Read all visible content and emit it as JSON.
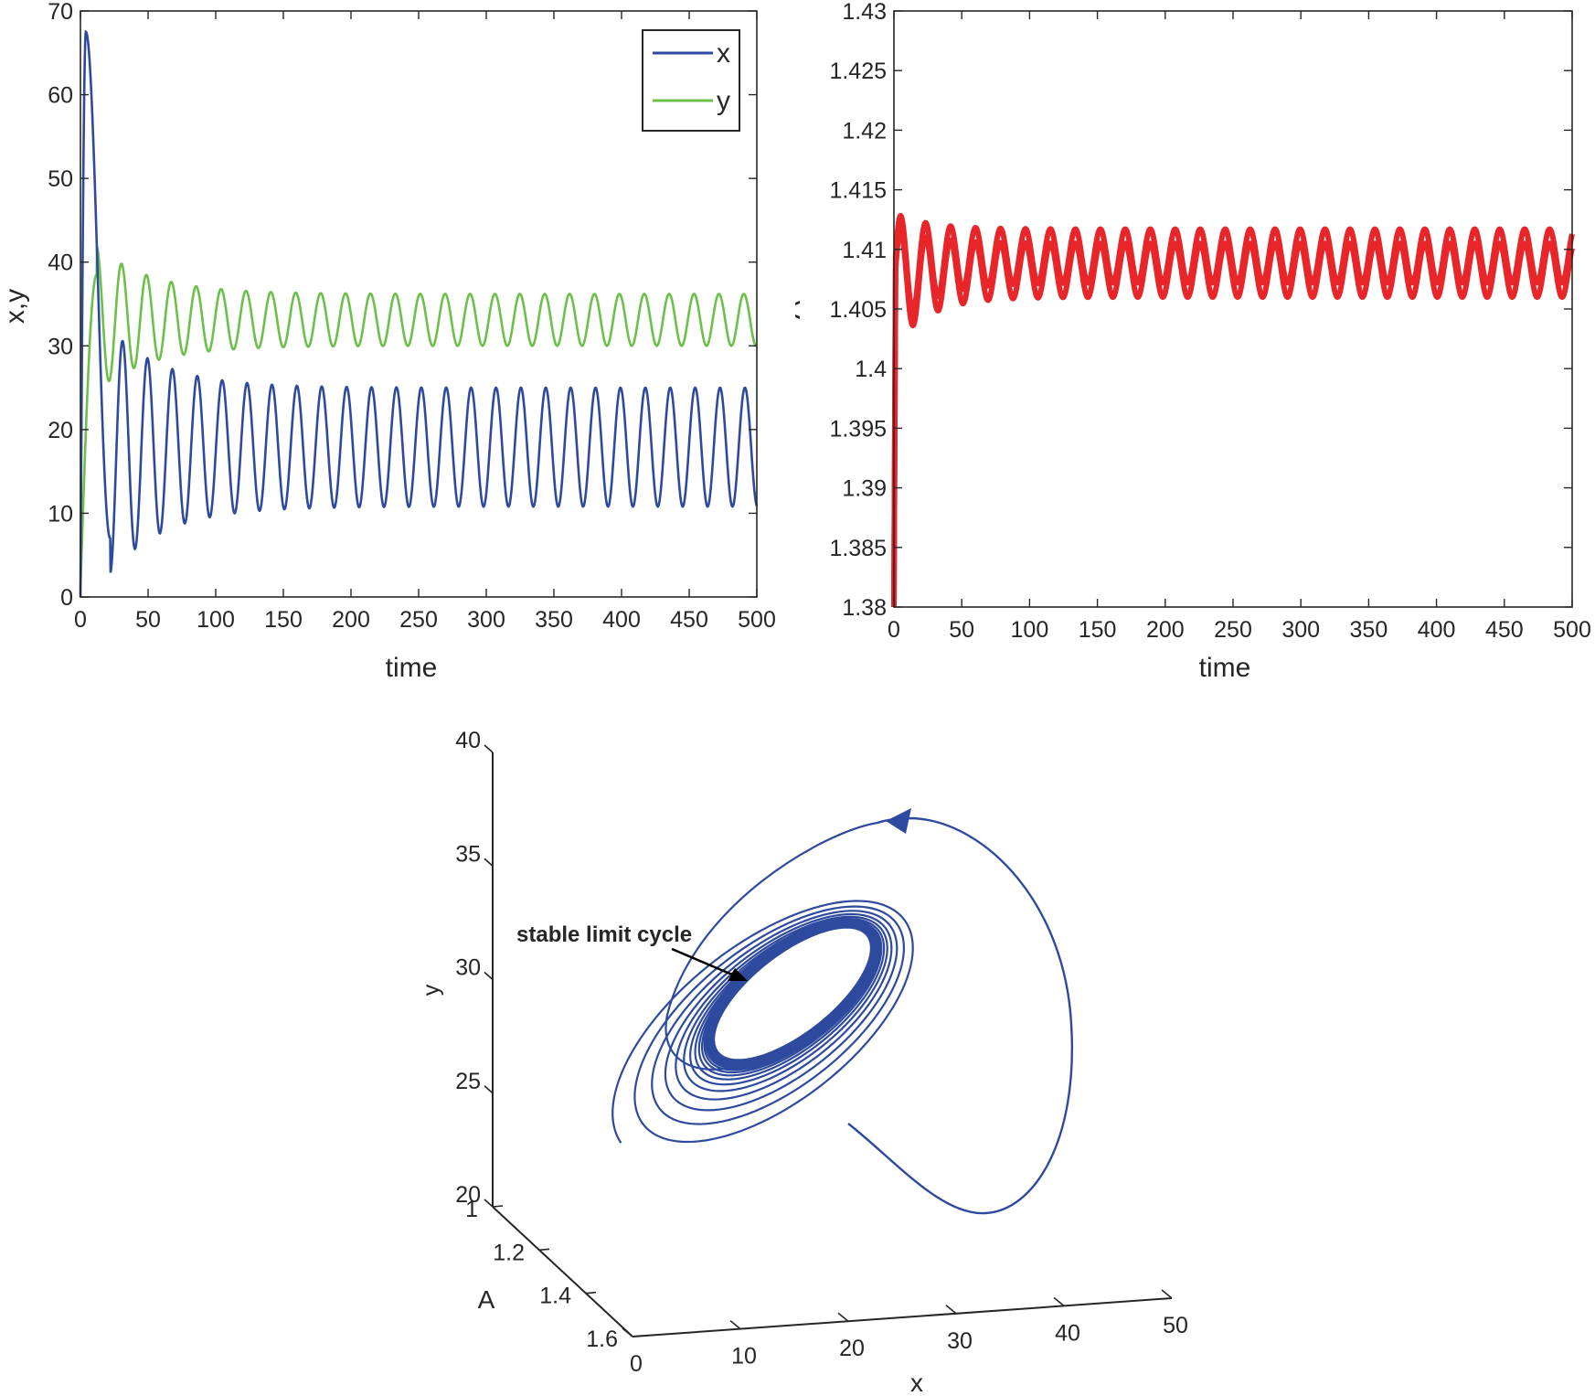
{
  "chart_data": [
    {
      "type": "line",
      "panel": "top-left",
      "xlabel": "time",
      "ylabel": "x,y",
      "xlim": [
        0,
        500
      ],
      "ylim": [
        0,
        70
      ],
      "xticks": [
        "0",
        "50",
        "100",
        "150",
        "200",
        "250",
        "300",
        "350",
        "400",
        "450",
        "500"
      ],
      "yticks": [
        "0",
        "10",
        "20",
        "30",
        "40",
        "50",
        "60",
        "70"
      ],
      "legend": "top-right",
      "series": [
        {
          "name": "x",
          "color": "#2E4A9E",
          "description_values": {
            "initial": 0,
            "peak": 67.5,
            "peak_time": 4,
            "period": 18.4,
            "steady_min": 10.8,
            "steady_max": 25.0
          }
        },
        {
          "name": "y",
          "color": "#6CC04A",
          "description_values": {
            "initial": 1,
            "peak": 38.5,
            "peak_time": 12,
            "period": 18.4,
            "steady_min": 30.0,
            "steady_max": 36.2
          }
        }
      ]
    },
    {
      "type": "line",
      "panel": "top-right",
      "xlabel": "time",
      "ylabel": "A",
      "xlim": [
        0,
        500
      ],
      "ylim": [
        1.38,
        1.43
      ],
      "xticks": [
        "0",
        "50",
        "100",
        "150",
        "200",
        "250",
        "300",
        "350",
        "400",
        "450",
        "500"
      ],
      "yticks": [
        "1.38",
        "1.385",
        "1.39",
        "1.395",
        "1.4",
        "1.405",
        "1.41",
        "1.415",
        "1.42",
        "1.425",
        "1.43"
      ],
      "series": [
        {
          "name": "A",
          "color": "#E8262A",
          "description_values": {
            "initial": 1.38,
            "steady_min": 1.4055,
            "steady_max": 1.412,
            "period": 18.4
          }
        }
      ]
    },
    {
      "type": "line",
      "panel": "bottom-3d",
      "xlabel": "x",
      "ylabel": "A",
      "zlabel": "y",
      "xticks": [
        "0",
        "10",
        "20",
        "30",
        "40",
        "50"
      ],
      "yticks": [
        "1",
        "1.2",
        "1.4",
        "1.6"
      ],
      "zticks": [
        "20",
        "25",
        "30",
        "35",
        "40"
      ],
      "annotation": "stable limit cycle",
      "series": [
        {
          "name": "trajectory",
          "color": "#2E4A9E"
        }
      ]
    }
  ],
  "colors": {
    "x_series": "#2E4A9E",
    "y_series": "#6CC04A",
    "A_series": "#E8262A",
    "axis": "#262626"
  }
}
